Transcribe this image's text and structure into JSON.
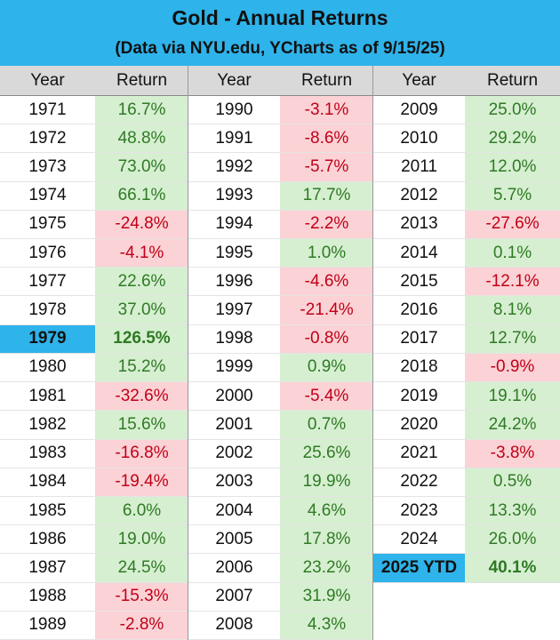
{
  "header": {
    "title": "Gold - Annual Returns",
    "subtitle": "(Data via NYU.edu, YCharts as of 9/15/25)"
  },
  "table": {
    "columns": [
      "Year",
      "Return",
      "Year",
      "Return",
      "Year",
      "Return"
    ],
    "groups": [
      {
        "rows": [
          {
            "year": "1971",
            "return": "16.7%"
          },
          {
            "year": "1972",
            "return": "48.8%"
          },
          {
            "year": "1973",
            "return": "73.0%"
          },
          {
            "year": "1974",
            "return": "66.1%"
          },
          {
            "year": "1975",
            "return": "-24.8%"
          },
          {
            "year": "1976",
            "return": "-4.1%"
          },
          {
            "year": "1977",
            "return": "22.6%"
          },
          {
            "year": "1978",
            "return": "37.0%"
          },
          {
            "year": "1979",
            "return": "126.5%",
            "highlight": true
          },
          {
            "year": "1980",
            "return": "15.2%"
          },
          {
            "year": "1981",
            "return": "-32.6%"
          },
          {
            "year": "1982",
            "return": "15.6%"
          },
          {
            "year": "1983",
            "return": "-16.8%"
          },
          {
            "year": "1984",
            "return": "-19.4%"
          },
          {
            "year": "1985",
            "return": "6.0%"
          },
          {
            "year": "1986",
            "return": "19.0%"
          },
          {
            "year": "1987",
            "return": "24.5%"
          },
          {
            "year": "1988",
            "return": "-15.3%"
          },
          {
            "year": "1989",
            "return": "-2.8%"
          }
        ]
      },
      {
        "rows": [
          {
            "year": "1990",
            "return": "-3.1%"
          },
          {
            "year": "1991",
            "return": "-8.6%"
          },
          {
            "year": "1992",
            "return": "-5.7%"
          },
          {
            "year": "1993",
            "return": "17.7%"
          },
          {
            "year": "1994",
            "return": "-2.2%"
          },
          {
            "year": "1995",
            "return": "1.0%"
          },
          {
            "year": "1996",
            "return": "-4.6%"
          },
          {
            "year": "1997",
            "return": "-21.4%"
          },
          {
            "year": "1998",
            "return": "-0.8%"
          },
          {
            "year": "1999",
            "return": "0.9%"
          },
          {
            "year": "2000",
            "return": "-5.4%"
          },
          {
            "year": "2001",
            "return": "0.7%"
          },
          {
            "year": "2002",
            "return": "25.6%"
          },
          {
            "year": "2003",
            "return": "19.9%"
          },
          {
            "year": "2004",
            "return": "4.6%"
          },
          {
            "year": "2005",
            "return": "17.8%"
          },
          {
            "year": "2006",
            "return": "23.2%"
          },
          {
            "year": "2007",
            "return": "31.9%"
          },
          {
            "year": "2008",
            "return": "4.3%"
          }
        ]
      },
      {
        "rows": [
          {
            "year": "2009",
            "return": "25.0%"
          },
          {
            "year": "2010",
            "return": "29.2%"
          },
          {
            "year": "2011",
            "return": "12.0%"
          },
          {
            "year": "2012",
            "return": "5.7%"
          },
          {
            "year": "2013",
            "return": "-27.6%"
          },
          {
            "year": "2014",
            "return": "0.1%"
          },
          {
            "year": "2015",
            "return": "-12.1%"
          },
          {
            "year": "2016",
            "return": "8.1%"
          },
          {
            "year": "2017",
            "return": "12.7%"
          },
          {
            "year": "2018",
            "return": "-0.9%"
          },
          {
            "year": "2019",
            "return": "19.1%"
          },
          {
            "year": "2020",
            "return": "24.2%"
          },
          {
            "year": "2021",
            "return": "-3.8%"
          },
          {
            "year": "2022",
            "return": "0.5%"
          },
          {
            "year": "2023",
            "return": "13.3%"
          },
          {
            "year": "2024",
            "return": "26.0%"
          },
          {
            "year": "2025 YTD",
            "return": "40.1%",
            "highlight": true
          }
        ]
      }
    ]
  }
}
